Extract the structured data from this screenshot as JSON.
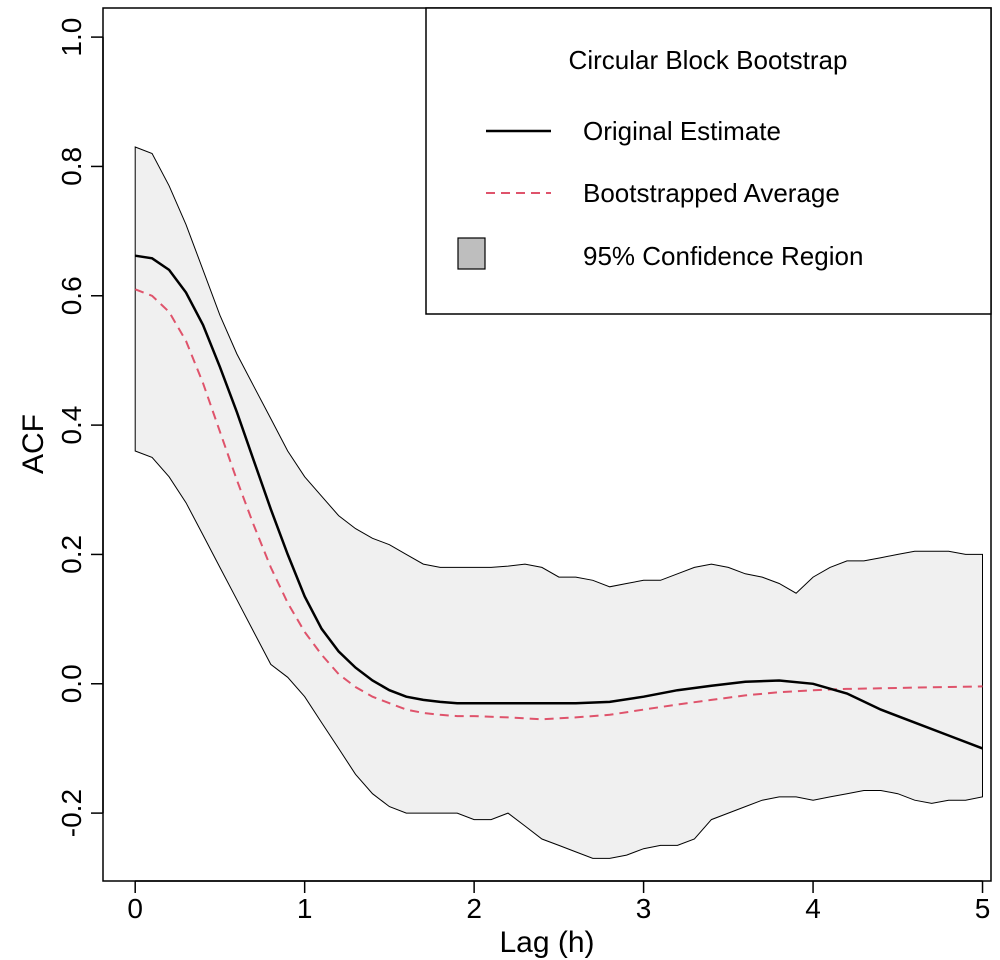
{
  "chart_data": {
    "type": "area",
    "xlabel": "Lag (h)",
    "ylabel": "ACF",
    "xlim": [
      -0.19,
      5.05
    ],
    "ylim": [
      -0.305,
      1.045
    ],
    "xticks": [
      0,
      1,
      2,
      3,
      4,
      5
    ],
    "yticks": [
      -0.2,
      0.0,
      0.2,
      0.4,
      0.6,
      0.8,
      1.0
    ],
    "ytick_labels": [
      "-0.2",
      "0.0",
      "0.2",
      "0.4",
      "0.6",
      "0.8",
      "1.0"
    ],
    "grid": false,
    "legend": {
      "position": "top-right",
      "title": "Circular Block Bootstrap",
      "entries": [
        {
          "label": "Original Estimate",
          "style": "solid",
          "color": "#000000"
        },
        {
          "label": "Bootstrapped Average",
          "style": "dashed",
          "color": "#df536b"
        },
        {
          "label": "95% Confidence Region",
          "style": "fill",
          "color": "#bebebe"
        }
      ]
    },
    "colors": {
      "original": "#000000",
      "bootstrap": "#df536b",
      "band_fill": "#f0f0f0",
      "band_edge": "#000000",
      "legend_swatch": "#bebebe"
    },
    "series": [
      {
        "name": "Original Estimate",
        "x": [
          0,
          0.1,
          0.2,
          0.3,
          0.4,
          0.5,
          0.6,
          0.7,
          0.8,
          0.9,
          1.0,
          1.1,
          1.2,
          1.3,
          1.4,
          1.5,
          1.6,
          1.7,
          1.8,
          1.9,
          2.0,
          2.2,
          2.4,
          2.6,
          2.8,
          3.0,
          3.2,
          3.4,
          3.6,
          3.8,
          4.0,
          4.2,
          4.4,
          4.6,
          4.8,
          5.0
        ],
        "y": [
          0.662,
          0.658,
          0.64,
          0.605,
          0.555,
          0.49,
          0.42,
          0.345,
          0.27,
          0.2,
          0.135,
          0.085,
          0.05,
          0.025,
          0.005,
          -0.01,
          -0.02,
          -0.025,
          -0.028,
          -0.03,
          -0.03,
          -0.03,
          -0.03,
          -0.03,
          -0.028,
          -0.02,
          -0.01,
          -0.003,
          0.003,
          0.005,
          0.0,
          -0.015,
          -0.04,
          -0.06,
          -0.08,
          -0.1
        ]
      },
      {
        "name": "Bootstrapped Average",
        "x": [
          0,
          0.1,
          0.2,
          0.3,
          0.4,
          0.5,
          0.6,
          0.7,
          0.8,
          0.9,
          1.0,
          1.1,
          1.2,
          1.3,
          1.4,
          1.5,
          1.6,
          1.7,
          1.8,
          1.9,
          2.0,
          2.2,
          2.4,
          2.6,
          2.8,
          3.0,
          3.2,
          3.4,
          3.6,
          3.8,
          4.0,
          4.2,
          4.4,
          4.6,
          4.8,
          5.0
        ],
        "y": [
          0.61,
          0.6,
          0.575,
          0.53,
          0.465,
          0.39,
          0.315,
          0.245,
          0.18,
          0.125,
          0.08,
          0.045,
          0.015,
          -0.005,
          -0.02,
          -0.03,
          -0.04,
          -0.045,
          -0.048,
          -0.05,
          -0.05,
          -0.052,
          -0.055,
          -0.052,
          -0.048,
          -0.04,
          -0.032,
          -0.025,
          -0.018,
          -0.013,
          -0.01,
          -0.008,
          -0.007,
          -0.006,
          -0.005,
          -0.004
        ]
      }
    ],
    "band": {
      "name": "95% Confidence Region",
      "x": [
        0,
        0.1,
        0.2,
        0.3,
        0.4,
        0.5,
        0.6,
        0.7,
        0.8,
        0.9,
        1.0,
        1.1,
        1.2,
        1.3,
        1.4,
        1.5,
        1.6,
        1.7,
        1.8,
        1.9,
        2.0,
        2.1,
        2.2,
        2.3,
        2.4,
        2.5,
        2.6,
        2.7,
        2.8,
        2.9,
        3.0,
        3.1,
        3.2,
        3.3,
        3.4,
        3.5,
        3.6,
        3.7,
        3.8,
        3.9,
        4.0,
        4.1,
        4.2,
        4.3,
        4.4,
        4.5,
        4.6,
        4.7,
        4.8,
        4.9,
        5.0
      ],
      "upper": [
        0.83,
        0.82,
        0.77,
        0.71,
        0.64,
        0.57,
        0.51,
        0.46,
        0.41,
        0.36,
        0.32,
        0.29,
        0.26,
        0.24,
        0.225,
        0.215,
        0.2,
        0.185,
        0.18,
        0.18,
        0.18,
        0.18,
        0.182,
        0.185,
        0.18,
        0.165,
        0.165,
        0.16,
        0.15,
        0.155,
        0.16,
        0.16,
        0.17,
        0.18,
        0.185,
        0.18,
        0.17,
        0.165,
        0.155,
        0.14,
        0.165,
        0.18,
        0.19,
        0.19,
        0.195,
        0.2,
        0.205,
        0.205,
        0.205,
        0.2,
        0.2
      ],
      "lower": [
        0.36,
        0.35,
        0.32,
        0.28,
        0.23,
        0.18,
        0.13,
        0.08,
        0.03,
        0.01,
        -0.02,
        -0.06,
        -0.1,
        -0.14,
        -0.17,
        -0.19,
        -0.2,
        -0.2,
        -0.2,
        -0.2,
        -0.21,
        -0.21,
        -0.2,
        -0.22,
        -0.24,
        -0.25,
        -0.26,
        -0.27,
        -0.27,
        -0.265,
        -0.255,
        -0.25,
        -0.25,
        -0.24,
        -0.21,
        -0.2,
        -0.19,
        -0.18,
        -0.175,
        -0.175,
        -0.18,
        -0.175,
        -0.17,
        -0.165,
        -0.165,
        -0.17,
        -0.18,
        -0.185,
        -0.18,
        -0.18,
        -0.175
      ]
    }
  }
}
